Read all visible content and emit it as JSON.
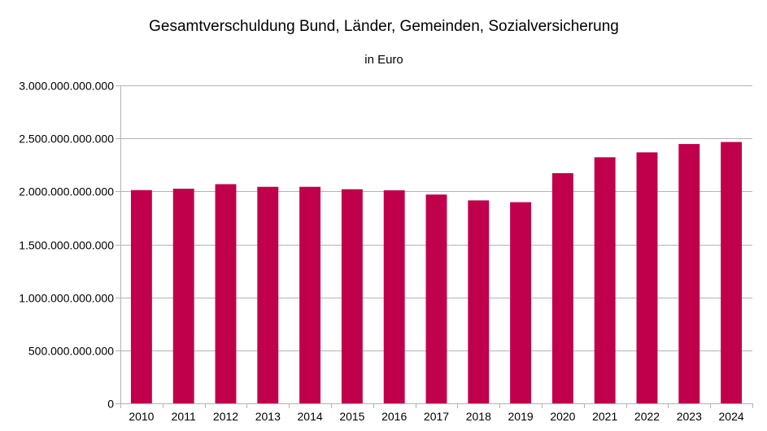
{
  "chart_data": {
    "type": "bar",
    "title": "Gesamtverschuldung Bund, Länder, Gemeinden, Sozialversicherung",
    "subtitle": "in Euro",
    "xlabel": "",
    "ylabel": "",
    "categories": [
      "2010",
      "2011",
      "2012",
      "2013",
      "2014",
      "2015",
      "2016",
      "2017",
      "2018",
      "2019",
      "2020",
      "2021",
      "2022",
      "2023",
      "2024"
    ],
    "values": [
      2012000000000,
      2025000000000,
      2068000000000,
      2043000000000,
      2043000000000,
      2020000000000,
      2010000000000,
      1970000000000,
      1915000000000,
      1898000000000,
      2172000000000,
      2322000000000,
      2368000000000,
      2447000000000,
      2466000000000
    ],
    "ylim": [
      0,
      3000000000000
    ],
    "yticks": [
      0,
      500000000000,
      1000000000000,
      1500000000000,
      2000000000000,
      2500000000000,
      3000000000000
    ],
    "ytick_labels": [
      "0",
      "500.000.000.000",
      "1.000.000.000.000",
      "1.500.000.000.000",
      "2.000.000.000.000",
      "2.500.000.000.000",
      "3.000.000.000.000"
    ],
    "grid": true,
    "legend": "none",
    "bar_color": "#c0004a"
  }
}
